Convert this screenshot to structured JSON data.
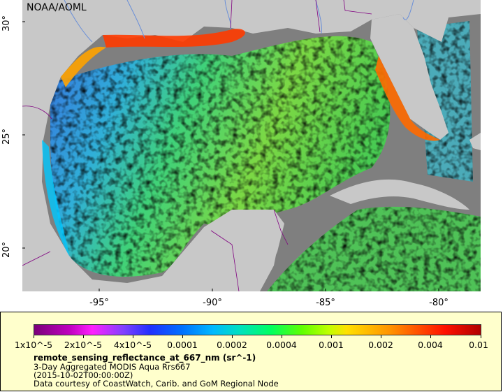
{
  "credit": "NOAA/AOML",
  "axes": {
    "y_ticks": [
      "30°",
      "25°",
      "20°"
    ],
    "x_ticks": [
      "-95°",
      "-90°",
      "-85°",
      "-80°"
    ]
  },
  "legend": {
    "ticks": [
      "1x10^-5",
      "2x10^-5",
      "4x10^-5",
      "0.0001",
      "0.0002",
      "0.0004",
      "0.001",
      "0.002",
      "0.004",
      "0.01"
    ],
    "title": "remote_sensing_reflectance_at_667_nm (sr^-1)",
    "line1": "3-Day Aggregated MODIS Aqua Rrs667",
    "line2": "(2015-10-02T00:00:00Z)",
    "line3": "Data courtesy of CoastWatch, Carib. and GoM Regional Node"
  },
  "colors": {
    "land": "#c8c8c8",
    "nodata": "#7f7f7f",
    "border": "#800080",
    "river": "#6a8fd8",
    "panel": "#ffffcc"
  }
}
